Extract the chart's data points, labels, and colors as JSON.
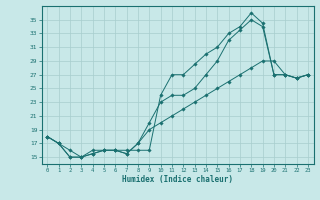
{
  "xlabel": "Humidex (Indice chaleur)",
  "bg_color": "#c8e8e8",
  "line_color": "#1a7070",
  "grid_color": "#a8cece",
  "xlim": [
    -0.5,
    23.5
  ],
  "ylim": [
    14.0,
    37.0
  ],
  "xticks": [
    0,
    1,
    2,
    3,
    4,
    5,
    6,
    7,
    8,
    9,
    10,
    11,
    12,
    13,
    14,
    15,
    16,
    17,
    18,
    19,
    20,
    21,
    22,
    23
  ],
  "yticks": [
    15,
    17,
    19,
    21,
    23,
    25,
    27,
    29,
    31,
    33,
    35
  ],
  "line1_x": [
    0,
    1,
    2,
    3,
    4,
    5,
    6,
    7,
    8,
    9,
    10,
    11,
    12,
    13,
    14,
    15,
    16,
    17,
    18,
    19,
    20,
    21,
    22,
    23
  ],
  "line1_y": [
    18,
    17,
    16,
    15,
    16,
    16,
    16,
    16,
    16,
    16,
    24,
    27,
    27,
    28.5,
    30,
    31,
    33,
    34,
    36,
    34.5,
    27,
    27,
    26.5,
    27
  ],
  "line2_x": [
    0,
    1,
    2,
    3,
    4,
    5,
    6,
    7,
    8,
    9,
    10,
    11,
    12,
    13,
    14,
    15,
    16,
    17,
    18,
    19,
    20,
    21,
    22,
    23
  ],
  "line2_y": [
    18,
    17,
    15,
    15,
    15.5,
    16,
    16,
    15.5,
    17,
    20,
    23,
    24,
    24,
    25,
    27,
    29,
    32,
    33.5,
    35,
    34,
    27,
    27,
    26.5,
    27
  ],
  "line3_x": [
    0,
    1,
    2,
    3,
    4,
    5,
    6,
    7,
    8,
    9,
    10,
    11,
    12,
    13,
    14,
    15,
    16,
    17,
    18,
    19,
    20,
    21,
    22,
    23
  ],
  "line3_y": [
    18,
    17,
    15,
    15,
    15.5,
    16,
    16,
    15.5,
    17,
    19,
    20,
    21,
    22,
    23,
    24,
    25,
    26,
    27,
    28,
    29,
    29,
    27,
    26.5,
    27
  ]
}
